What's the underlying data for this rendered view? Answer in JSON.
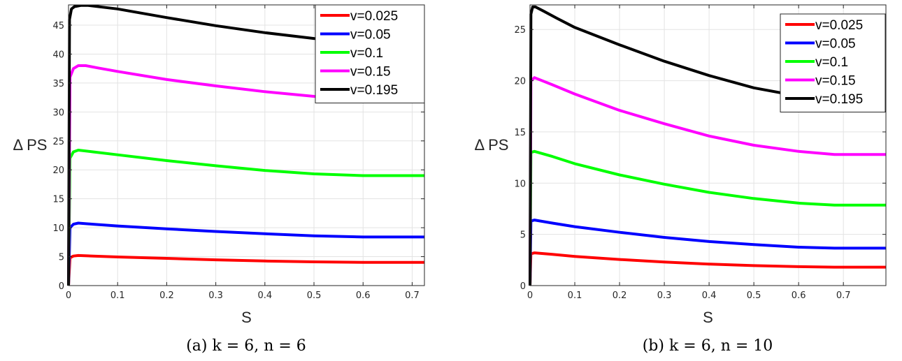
{
  "chart_data": [
    {
      "type": "line",
      "caption": "(a) k = 6, n = 6",
      "xlabel": "S",
      "ylabel": "Δ PS",
      "xlim": [
        0,
        0.725
      ],
      "ylim": [
        0,
        48.5
      ],
      "xticks": [
        0,
        0.1,
        0.2,
        0.3,
        0.4,
        0.5,
        0.6,
        0.7
      ],
      "xtick_labels": [
        "0",
        "0.1",
        "0.2",
        "0.3",
        "0.4",
        "0.5",
        "0.6",
        "0.7"
      ],
      "yticks": [
        0,
        5,
        10,
        15,
        20,
        25,
        30,
        35,
        40,
        45
      ],
      "ytick_labels": [
        "0",
        "5",
        "10",
        "15",
        "20",
        "25",
        "30",
        "35",
        "40",
        "45"
      ],
      "grid": true,
      "legend": "top-right",
      "series": [
        {
          "name": "v=0.025",
          "color": "#ff0000",
          "x": [
            0,
            0.003,
            0.01,
            0.02,
            0.05,
            0.1,
            0.2,
            0.3,
            0.4,
            0.5,
            0.6,
            0.65,
            0.725
          ],
          "y": [
            0,
            4.8,
            5.1,
            5.2,
            5.1,
            4.95,
            4.7,
            4.45,
            4.25,
            4.1,
            4.0,
            4.0,
            4.0
          ]
        },
        {
          "name": "v=0.05",
          "color": "#0000ff",
          "x": [
            0,
            0.003,
            0.01,
            0.02,
            0.05,
            0.1,
            0.2,
            0.3,
            0.4,
            0.5,
            0.6,
            0.65,
            0.725
          ],
          "y": [
            0,
            10.0,
            10.6,
            10.8,
            10.6,
            10.3,
            9.8,
            9.35,
            8.95,
            8.6,
            8.4,
            8.4,
            8.4
          ]
        },
        {
          "name": "v=0.1",
          "color": "#00ff00",
          "x": [
            0,
            0.003,
            0.01,
            0.02,
            0.05,
            0.1,
            0.2,
            0.3,
            0.4,
            0.5,
            0.6,
            0.65,
            0.725
          ],
          "y": [
            0,
            22.0,
            23.1,
            23.4,
            23.1,
            22.6,
            21.6,
            20.7,
            19.9,
            19.3,
            19.0,
            19.0,
            19.0
          ]
        },
        {
          "name": "v=0.15",
          "color": "#ff00ff",
          "x": [
            0,
            0.003,
            0.01,
            0.02,
            0.035,
            0.06,
            0.1,
            0.2,
            0.3,
            0.4,
            0.5,
            0.6,
            0.725
          ],
          "y": [
            0,
            36.0,
            37.5,
            38.0,
            38.0,
            37.6,
            37.0,
            35.6,
            34.5,
            33.5,
            32.7,
            32.1,
            32.1
          ]
        },
        {
          "name": "v=0.195",
          "color": "#000000",
          "x": [
            0,
            0.002,
            0.006,
            0.012,
            0.025,
            0.04,
            0.07,
            0.1,
            0.2,
            0.3,
            0.4,
            0.5,
            0.6,
            0.725
          ],
          "y": [
            0,
            46.0,
            47.8,
            48.2,
            48.4,
            48.4,
            48.1,
            47.8,
            46.3,
            44.9,
            43.7,
            42.7,
            42.3,
            42.3
          ]
        }
      ]
    },
    {
      "type": "line",
      "caption": "(b) k = 6, n = 10",
      "xlabel": "S",
      "ylabel": "Δ PS",
      "xlim": [
        0,
        0.795
      ],
      "ylim": [
        0,
        27.4
      ],
      "xticks": [
        0,
        0.1,
        0.2,
        0.3,
        0.4,
        0.5,
        0.6,
        0.7
      ],
      "xtick_labels": [
        "0",
        "0.1",
        "0.2",
        "0.3",
        "0.4",
        "0.5",
        "0.6",
        "0.7"
      ],
      "yticks": [
        0,
        5,
        10,
        15,
        20,
        25
      ],
      "ytick_labels": [
        "0",
        "5",
        "10",
        "15",
        "20",
        "25"
      ],
      "grid": true,
      "legend": "top-right",
      "series": [
        {
          "name": "v=0.025",
          "color": "#ff0000",
          "x": [
            0,
            0.002,
            0.01,
            0.05,
            0.1,
            0.2,
            0.3,
            0.4,
            0.5,
            0.6,
            0.68,
            0.795
          ],
          "y": [
            0,
            3.1,
            3.2,
            3.05,
            2.85,
            2.55,
            2.3,
            2.1,
            1.95,
            1.85,
            1.8,
            1.8
          ]
        },
        {
          "name": "v=0.05",
          "color": "#0000ff",
          "x": [
            0,
            0.002,
            0.01,
            0.05,
            0.1,
            0.2,
            0.3,
            0.4,
            0.5,
            0.6,
            0.68,
            0.795
          ],
          "y": [
            0,
            6.3,
            6.4,
            6.1,
            5.75,
            5.2,
            4.7,
            4.3,
            4.0,
            3.75,
            3.65,
            3.65
          ]
        },
        {
          "name": "v=0.1",
          "color": "#00ff00",
          "x": [
            0,
            0.002,
            0.01,
            0.05,
            0.1,
            0.2,
            0.3,
            0.4,
            0.5,
            0.6,
            0.68,
            0.795
          ],
          "y": [
            0,
            13.0,
            13.1,
            12.6,
            11.9,
            10.8,
            9.9,
            9.1,
            8.5,
            8.05,
            7.85,
            7.85
          ]
        },
        {
          "name": "v=0.15",
          "color": "#ff00ff",
          "x": [
            0,
            0.002,
            0.01,
            0.05,
            0.1,
            0.2,
            0.3,
            0.4,
            0.5,
            0.6,
            0.68,
            0.795
          ],
          "y": [
            0,
            20.0,
            20.3,
            19.6,
            18.7,
            17.1,
            15.8,
            14.6,
            13.7,
            13.1,
            12.8,
            12.8
          ]
        },
        {
          "name": "v=0.195",
          "color": "#000000",
          "x": [
            0,
            0.002,
            0.006,
            0.012,
            0.03,
            0.06,
            0.1,
            0.2,
            0.3,
            0.4,
            0.5,
            0.6,
            0.7,
            0.795
          ],
          "y": [
            0,
            26.5,
            27.2,
            27.2,
            26.8,
            26.1,
            25.2,
            23.5,
            21.9,
            20.5,
            19.3,
            18.5,
            18.1,
            18.1
          ]
        }
      ]
    }
  ]
}
